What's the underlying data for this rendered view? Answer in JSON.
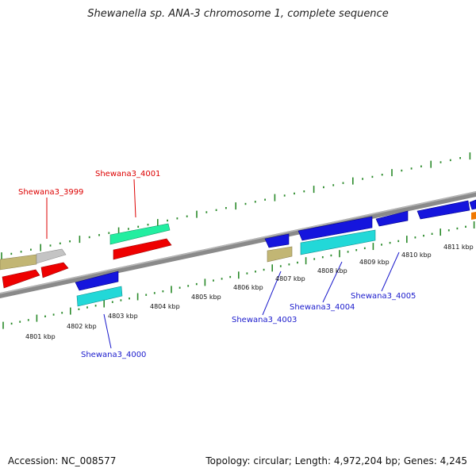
{
  "header": {
    "title": "Shewanella sp. ANA-3 chromosome 1, complete sequence"
  },
  "footer": {
    "accession": "Accession: NC_008577",
    "summary": "Topology: circular; Length: 4,972,204 bp; Genes: 4,245"
  },
  "colors": {
    "backbone": "#8a8a8a",
    "tick_marks": "#2a8a2a",
    "forward_label": "#dd0000",
    "reverse_label": "#1a1acc",
    "cds_red": "#ee0000",
    "cds_blue": "#1515dd",
    "cds_cyan": "#22d8d8",
    "cds_mint": "#22eea0",
    "cds_olive": "#c2b674",
    "cds_grey": "#c4c4c4",
    "cds_orange": "#f07800"
  },
  "scale": {
    "unit": "kbp",
    "labels": [
      "4801 kbp",
      "4802 kbp",
      "4803 kbp",
      "4804 kbp",
      "4805 kbp",
      "4806 kbp",
      "4807 kbp",
      "4808 kbp",
      "4809 kbp",
      "4810 kbp",
      "4811 kbp"
    ]
  },
  "genes": {
    "forward": [
      "Shewana3_3999",
      "Shewana3_4001"
    ],
    "reverse": [
      "Shewana3_4000",
      "Shewana3_4003",
      "Shewana3_4004",
      "Shewana3_4005"
    ]
  }
}
